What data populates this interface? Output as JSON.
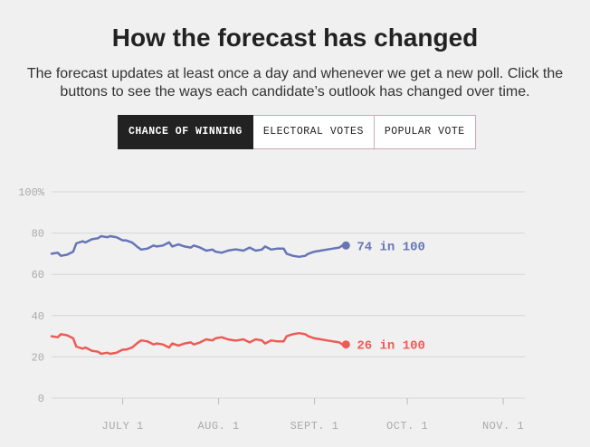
{
  "page": {
    "title": "How the forecast has changed",
    "subtitle": "The forecast updates at least once a day and whenever we get a new poll. Click the buttons to see the ways each candidate’s outlook has changed over time."
  },
  "tabs": [
    {
      "label": "CHANCE OF WINNING",
      "active": true
    },
    {
      "label": "ELECTORAL VOTES",
      "active": false
    },
    {
      "label": "POPULAR VOTE",
      "active": false
    }
  ],
  "colors": {
    "blue": "#6675b6",
    "red": "#ee5a55",
    "grid": "#d6d6d6",
    "axis_text": "#aaaaaa"
  },
  "chart_data": {
    "type": "line",
    "y_ticks": [
      "100%",
      "80",
      "60",
      "40",
      "20",
      "0"
    ],
    "y_tick_values": [
      100,
      80,
      60,
      40,
      20,
      0
    ],
    "ylim": [
      0,
      100
    ],
    "x_ticks": [
      "JULY 1",
      "AUG. 1",
      "SEPT. 1",
      "OCT. 1",
      "NOV. 1"
    ],
    "x_tick_values": [
      "2016-07-01",
      "2016-08-01",
      "2016-09-01",
      "2016-10-01",
      "2016-11-01"
    ],
    "xlim": [
      "2016-06-08",
      "2016-11-08"
    ],
    "grid": true,
    "series": [
      {
        "color": "#6675b6",
        "end_label": "74 in 100",
        "x": [
          "2016-06-08",
          "2016-06-10",
          "2016-06-11",
          "2016-06-13",
          "2016-06-15",
          "2016-06-16",
          "2016-06-18",
          "2016-06-19",
          "2016-06-21",
          "2016-06-23",
          "2016-06-24",
          "2016-06-26",
          "2016-06-27",
          "2016-06-29",
          "2016-07-01",
          "2016-07-02",
          "2016-07-04",
          "2016-07-06",
          "2016-07-07",
          "2016-07-09",
          "2016-07-11",
          "2016-07-12",
          "2016-07-14",
          "2016-07-16",
          "2016-07-17",
          "2016-07-19",
          "2016-07-21",
          "2016-07-23",
          "2016-07-24",
          "2016-07-26",
          "2016-07-28",
          "2016-07-30",
          "2016-07-31",
          "2016-08-02",
          "2016-08-04",
          "2016-08-06",
          "2016-08-07",
          "2016-08-09",
          "2016-08-11",
          "2016-08-13",
          "2016-08-15",
          "2016-08-16",
          "2016-08-18",
          "2016-08-20",
          "2016-08-22",
          "2016-08-23",
          "2016-08-25",
          "2016-08-27",
          "2016-08-29",
          "2016-08-30",
          "2016-09-01",
          "2016-09-03",
          "2016-09-05",
          "2016-09-07",
          "2016-09-09",
          "2016-09-10"
        ],
        "values": [
          70,
          70.5,
          69,
          69.5,
          71,
          75,
          76,
          75.5,
          77,
          77.5,
          78.5,
          78,
          78.5,
          78,
          76.5,
          76.5,
          75.5,
          73,
          72,
          72.5,
          74,
          73.5,
          74,
          75.5,
          73.5,
          74.5,
          73.5,
          73,
          74,
          73,
          71.5,
          72,
          71,
          70.5,
          71.5,
          72,
          72,
          71.5,
          73,
          71.5,
          72,
          73.5,
          72,
          72.5,
          72.5,
          70,
          69,
          68.5,
          69,
          70,
          71,
          71.5,
          72,
          72.5,
          73,
          74
        ]
      },
      {
        "color": "#ee5a55",
        "end_label": "26 in 100",
        "x": [
          "2016-06-08",
          "2016-06-10",
          "2016-06-11",
          "2016-06-13",
          "2016-06-15",
          "2016-06-16",
          "2016-06-18",
          "2016-06-19",
          "2016-06-21",
          "2016-06-23",
          "2016-06-24",
          "2016-06-26",
          "2016-06-27",
          "2016-06-29",
          "2016-07-01",
          "2016-07-02",
          "2016-07-04",
          "2016-07-06",
          "2016-07-07",
          "2016-07-09",
          "2016-07-11",
          "2016-07-12",
          "2016-07-14",
          "2016-07-16",
          "2016-07-17",
          "2016-07-19",
          "2016-07-21",
          "2016-07-23",
          "2016-07-24",
          "2016-07-26",
          "2016-07-28",
          "2016-07-30",
          "2016-07-31",
          "2016-08-02",
          "2016-08-04",
          "2016-08-06",
          "2016-08-07",
          "2016-08-09",
          "2016-08-11",
          "2016-08-13",
          "2016-08-15",
          "2016-08-16",
          "2016-08-18",
          "2016-08-20",
          "2016-08-22",
          "2016-08-23",
          "2016-08-25",
          "2016-08-27",
          "2016-08-29",
          "2016-08-30",
          "2016-09-01",
          "2016-09-03",
          "2016-09-05",
          "2016-09-07",
          "2016-09-09",
          "2016-09-10"
        ],
        "values": [
          30,
          29.5,
          31,
          30.5,
          29,
          25,
          24,
          24.5,
          23,
          22.5,
          21.5,
          22,
          21.5,
          22,
          23.5,
          23.5,
          24.5,
          27,
          28,
          27.5,
          26,
          26.5,
          26,
          24.5,
          26.5,
          25.5,
          26.5,
          27,
          26,
          27,
          28.5,
          28,
          29,
          29.5,
          28.5,
          28,
          28,
          28.5,
          27,
          28.5,
          28,
          26.5,
          28,
          27.5,
          27.5,
          30,
          31,
          31.5,
          31,
          30,
          29,
          28.5,
          28,
          27.5,
          27,
          26
        ]
      }
    ]
  }
}
